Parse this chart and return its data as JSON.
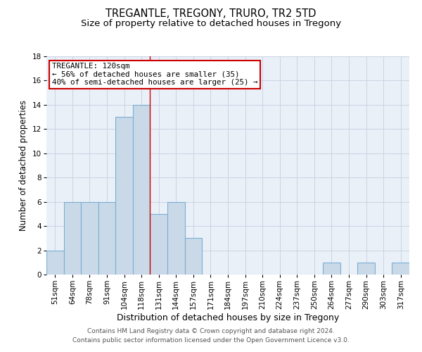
{
  "title": "TREGANTLE, TREGONY, TRURO, TR2 5TD",
  "subtitle": "Size of property relative to detached houses in Tregony",
  "xlabel": "Distribution of detached houses by size in Tregony",
  "ylabel": "Number of detached properties",
  "categories": [
    "51sqm",
    "64sqm",
    "78sqm",
    "91sqm",
    "104sqm",
    "118sqm",
    "131sqm",
    "144sqm",
    "157sqm",
    "171sqm",
    "184sqm",
    "197sqm",
    "210sqm",
    "224sqm",
    "237sqm",
    "250sqm",
    "264sqm",
    "277sqm",
    "290sqm",
    "303sqm",
    "317sqm"
  ],
  "values": [
    2,
    6,
    6,
    6,
    13,
    14,
    5,
    6,
    3,
    0,
    0,
    0,
    0,
    0,
    0,
    0,
    1,
    0,
    1,
    0,
    1
  ],
  "bar_color": "#c9d9e8",
  "bar_edgecolor": "#7bafd4",
  "grid_color": "#c8d4e3",
  "background_color": "#eaf0f8",
  "vline_x": 5.5,
  "vline_color": "#cc0000",
  "ylim": [
    0,
    18
  ],
  "yticks": [
    0,
    2,
    4,
    6,
    8,
    10,
    12,
    14,
    16,
    18
  ],
  "annotation_title": "TREGANTLE: 120sqm",
  "annotation_line1": "← 56% of detached houses are smaller (35)",
  "annotation_line2": "40% of semi-detached houses are larger (25) →",
  "annotation_box_color": "white",
  "annotation_box_edgecolor": "#cc0000",
  "footer_line1": "Contains HM Land Registry data © Crown copyright and database right 2024.",
  "footer_line2": "Contains public sector information licensed under the Open Government Licence v3.0.",
  "title_fontsize": 10.5,
  "subtitle_fontsize": 9.5,
  "xlabel_fontsize": 9,
  "ylabel_fontsize": 8.5,
  "tick_fontsize": 7.5,
  "footer_fontsize": 6.5,
  "annotation_fontsize": 7.8
}
